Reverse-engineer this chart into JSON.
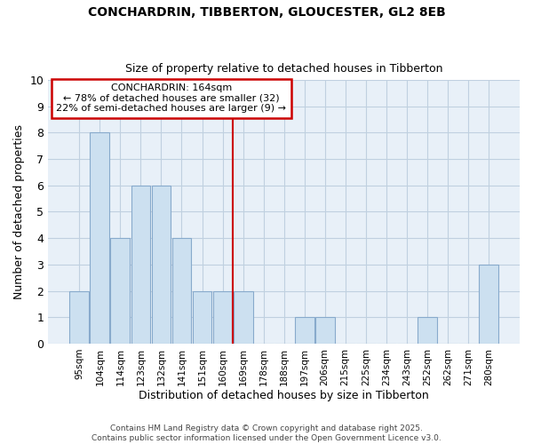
{
  "title": "CONCHARDRIN, TIBBERTON, GLOUCESTER, GL2 8EB",
  "subtitle": "Size of property relative to detached houses in Tibberton",
  "xlabel": "Distribution of detached houses by size in Tibberton",
  "ylabel": "Number of detached properties",
  "categories": [
    "95sqm",
    "104sqm",
    "114sqm",
    "123sqm",
    "132sqm",
    "141sqm",
    "151sqm",
    "160sqm",
    "169sqm",
    "178sqm",
    "188sqm",
    "197sqm",
    "206sqm",
    "215sqm",
    "225sqm",
    "234sqm",
    "243sqm",
    "252sqm",
    "262sqm",
    "271sqm",
    "280sqm"
  ],
  "values": [
    2,
    8,
    4,
    6,
    6,
    4,
    2,
    2,
    2,
    0,
    0,
    1,
    1,
    0,
    0,
    0,
    0,
    1,
    0,
    0,
    3
  ],
  "bar_color": "#cce0f0",
  "bar_edgecolor": "#88aacc",
  "vline_x": 7.5,
  "vline_color": "#cc0000",
  "annotation_title": "CONCHARDRIN: 164sqm",
  "annotation_line1": "← 78% of detached houses are smaller (32)",
  "annotation_line2": "22% of semi-detached houses are larger (9) →",
  "annotation_box_color": "#cc0000",
  "ylim": [
    0,
    10
  ],
  "yticks": [
    0,
    1,
    2,
    3,
    4,
    5,
    6,
    7,
    8,
    9,
    10
  ],
  "grid_color": "#c0d0e0",
  "bg_color": "#e8f0f8",
  "fig_color": "#ffffff",
  "footer1": "Contains HM Land Registry data © Crown copyright and database right 2025.",
  "footer2": "Contains public sector information licensed under the Open Government Licence v3.0."
}
